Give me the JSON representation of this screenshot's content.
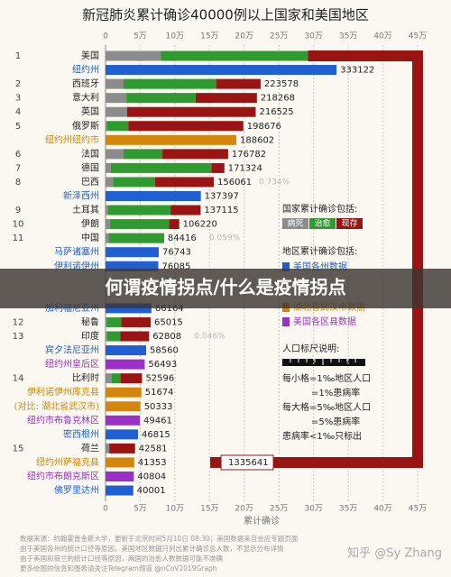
{
  "chart_data": {
    "type": "bar",
    "title": "新冠肺炎累计确诊40000例以上国家和美国地区",
    "xlabel": "累计确诊",
    "xlim": [
      0,
      450000
    ],
    "xticks": [
      0,
      {
        "value": 50000,
        "label": "5万"
      },
      {
        "value": 100000,
        "label": "10万"
      },
      {
        "value": 150000,
        "label": "15万"
      },
      {
        "value": 200000,
        "label": "20万"
      },
      {
        "value": 250000,
        "label": "25万"
      },
      {
        "value": 300000,
        "label": "30万"
      },
      {
        "value": 350000,
        "label": "35万"
      },
      {
        "value": 400000,
        "label": "40万"
      },
      {
        "value": 450000,
        "label": "45万"
      }
    ],
    "segment_names": [
      "病死",
      "治愈",
      "现存"
    ],
    "segment_colors": [
      "#8c8c8c",
      "#2f9a2f",
      "#9b1414"
    ],
    "kind_colors": {
      "state": "#1f5fd1",
      "city": "#d4860b",
      "borough": "#9b30c9"
    },
    "rows": [
      {
        "label": "美国",
        "rank": "1",
        "total": 1335641,
        "segments": [
          80000,
          212000,
          1043641
        ]
      },
      {
        "label": "纽约州",
        "total": 333122,
        "kind": "state"
      },
      {
        "label": "西班牙",
        "rank": "2",
        "total": 223578,
        "segments": [
          26000,
          134000,
          63578
        ]
      },
      {
        "label": "意大利",
        "rank": "3",
        "total": 218268,
        "segments": [
          30000,
          100000,
          88268
        ]
      },
      {
        "label": "英国",
        "rank": "4",
        "total": 216525,
        "segments": [
          31000,
          null,
          185525
        ],
        "unknown": "?"
      },
      {
        "label": "俄罗斯",
        "rank": "5",
        "total": 198676,
        "segments": [
          1800,
          31000,
          165876
        ]
      },
      {
        "label": "纽约州纽约市",
        "total": 188602,
        "kind": "city"
      },
      {
        "label": "法国",
        "rank": "6",
        "total": 176782,
        "segments": [
          26000,
          56000,
          94782
        ]
      },
      {
        "label": "德国",
        "rank": "7",
        "total": 171324,
        "segments": [
          7500,
          145000,
          18824
        ]
      },
      {
        "label": "巴西",
        "rank": "8",
        "total": 156061,
        "segments": [
          10600,
          61000,
          84461
        ],
        "note": "0.734%"
      },
      {
        "label": "新泽西州",
        "total": 137397,
        "kind": "state"
      },
      {
        "label": "土耳其",
        "rank": "9",
        "total": 137115,
        "segments": [
          3800,
          90000,
          43315
        ]
      },
      {
        "label": "伊朗",
        "rank": "10",
        "total": 106220,
        "segments": [
          6600,
          85000,
          14620
        ]
      },
      {
        "label": "中国",
        "rank": "11",
        "total": 84416,
        "segments": [
          4633,
          79000,
          783
        ],
        "note": "0.059%"
      },
      {
        "label": "马萨诸塞州",
        "total": 76743,
        "kind": "state"
      },
      {
        "label": "伊利诺伊州",
        "total": 76085,
        "kind": "state"
      },
      {
        "label": "加利福尼亚州",
        "total": 66164,
        "kind": "state"
      },
      {
        "label": "秘鲁",
        "rank": "12",
        "total": 65015,
        "segments": [
          1800,
          21000,
          42215
        ]
      },
      {
        "label": "印度",
        "rank": "13",
        "total": 62808,
        "segments": [
          2100,
          19000,
          41708
        ],
        "note": "0.046%"
      },
      {
        "label": "宾夕法尼亚州",
        "total": 58560,
        "kind": "state"
      },
      {
        "label": "纽约州皇后区",
        "total": 56493,
        "kind": "borough"
      },
      {
        "label": "比利时",
        "rank": "14",
        "total": 52596,
        "segments": [
          8600,
          13000,
          30996
        ]
      },
      {
        "label": "伊利诺伊州库克县",
        "total": 51674,
        "kind": "city"
      },
      {
        "label": "(对比: 湖北省武汉市)",
        "total": 50333,
        "kind": "city"
      },
      {
        "label": "纽约市布鲁克林区",
        "total": 49461,
        "kind": "borough"
      },
      {
        "label": "密西根州",
        "total": 46815,
        "kind": "state"
      },
      {
        "label": "荷兰",
        "rank": "15",
        "total": 42581,
        "segments": [
          5400,
          null,
          37181
        ],
        "unknown": "?"
      },
      {
        "label": "纽约州萨福克县",
        "total": 41353,
        "kind": "city"
      },
      {
        "label": "纽约市布朗克斯区",
        "total": 40804,
        "kind": "borough"
      },
      {
        "label": "佛罗里达州",
        "total": 40001,
        "kind": "state"
      }
    ],
    "country_legend_title": "国家累计确诊包括:",
    "region_legend_title": "地区累计确诊包括:",
    "region_legend": [
      {
        "name": "美国各州数据",
        "color": "#1f5fd1"
      },
      {
        "name": "湖北省武汉市数据",
        "color": "#d4860b"
      },
      {
        "name": "美国各区县数据",
        "color": "#9b30c9"
      }
    ],
    "ruler_title": "人口标尺说明:",
    "ruler_notes": [
      "每小格=1‰地区人口",
      "=1%患病率",
      "每大格=5‰地区人口",
      "=5%患病率",
      "患病率<1‰只标出"
    ],
    "footer": [
      "数据来源：约翰霍普金斯大学，更新于北京时间5月10日 08:30；美国数据来自会应专题页面",
      "由于美国各州的统计口径等原因，美国地区数据只列出累计确诊总人数，不显示分布详情",
      "由于美国和荷兰的统计口径等原因，两国的治愈人数数据可能不准确",
      "更多绘图的信息和图表请关注Telegram频道 @nCoV2019Graph"
    ],
    "watermark": "知乎 @Sy Zhang",
    "overlay_title": "何谓疫情拐点/什么是疫情拐点"
  }
}
